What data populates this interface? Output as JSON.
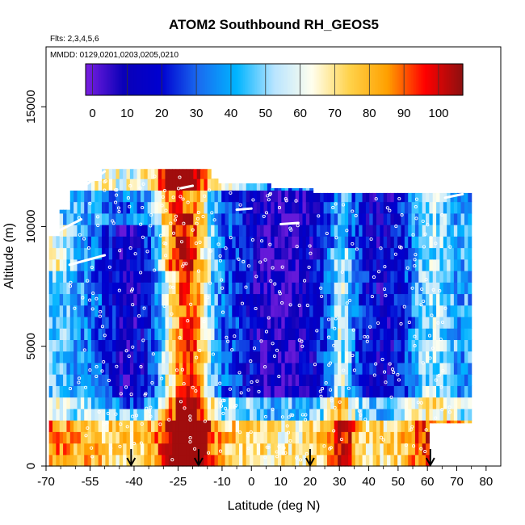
{
  "chart_data": {
    "type": "heatmap",
    "title": "ATOM2 Southbound RH_GEOS5",
    "annotations": [
      "Flts: 2,3,4,5,6",
      "MMDD: 0129,0201,0203,0205,0210"
    ],
    "xlabel": "Latitude (deg N)",
    "ylabel": "Altitude (m)",
    "xlim": [
      -70,
      85
    ],
    "ylim": [
      0,
      17500
    ],
    "x_ticks": [
      -70,
      -55,
      -40,
      -25,
      -10,
      0,
      10,
      20,
      30,
      40,
      50,
      60,
      70,
      80
    ],
    "x_tick_labels": [
      "-70",
      "-55",
      "-40",
      "-25",
      "-10",
      "0",
      "10",
      "20",
      "30",
      "40",
      "50",
      "60",
      "70",
      "80"
    ],
    "y_ticks": [
      0,
      5000,
      10000,
      15000
    ],
    "y_tick_labels": [
      "0",
      "5000",
      "10000",
      "15000"
    ],
    "colorbar": {
      "ticks": [
        0,
        10,
        20,
        30,
        40,
        50,
        60,
        70,
        80,
        90,
        100
      ],
      "tick_labels": [
        "0",
        "10",
        "20",
        "30",
        "40",
        "50",
        "60",
        "70",
        "80",
        "90",
        "100"
      ],
      "range": [
        -2,
        107
      ],
      "stops": [
        "#7a1fe0",
        "#0a00b8",
        "#0000d0",
        "#1a6cf0",
        "#00b4ff",
        "#b8e4ff",
        "#ffffee",
        "#ffd24a",
        "#ffa000",
        "#ff0000",
        "#8c1010"
      ]
    },
    "flight_arrows_latitude": [
      -41,
      -18,
      20,
      61
    ],
    "grid": false,
    "legend": "colorbar-top",
    "columns": [
      {
        "lat": -68,
        "top": 9500,
        "rh": "high"
      },
      {
        "lat": -60,
        "top": 11000,
        "rh": "mixed"
      },
      {
        "lat": -50,
        "top": 12400,
        "rh": "low"
      },
      {
        "lat": -38,
        "top": 12400,
        "rh": "low"
      },
      {
        "lat": -28,
        "top": 12400,
        "rh": "high"
      },
      {
        "lat": -18,
        "top": 12400,
        "rh": "high"
      },
      {
        "lat": -8,
        "top": 11800,
        "rh": "mid"
      },
      {
        "lat": 5,
        "top": 11500,
        "rh": "low"
      },
      {
        "lat": 15,
        "top": 11500,
        "rh": "low"
      },
      {
        "lat": 22,
        "top": 11500,
        "rh": "mixed"
      },
      {
        "lat": 32,
        "top": 11500,
        "rh": "low"
      },
      {
        "lat": 42,
        "top": 11500,
        "rh": "mixed"
      },
      {
        "lat": 52,
        "top": 11500,
        "rh": "low"
      },
      {
        "lat": 62,
        "top": 11500,
        "rh": "mid"
      },
      {
        "lat": 68,
        "top": 11500,
        "rh": "mid"
      }
    ]
  }
}
